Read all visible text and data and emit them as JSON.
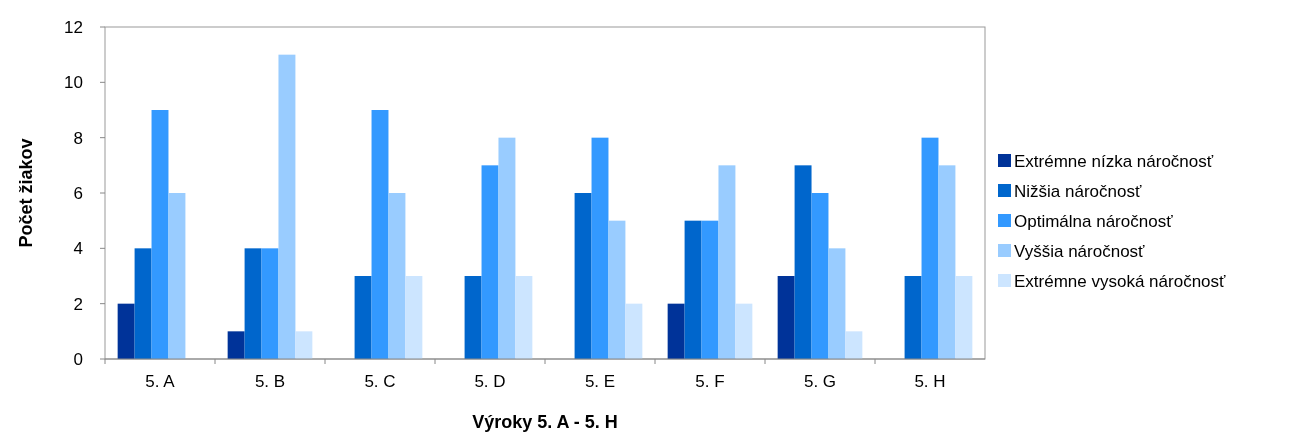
{
  "chart_data": {
    "type": "bar",
    "xlabel": "Výroky 5. A - 5. H",
    "ylabel": "Počet žiakov",
    "categories": [
      "5. A",
      "5. B",
      "5. C",
      "5. D",
      "5. E",
      "5. F",
      "5. G",
      "5. H"
    ],
    "series": [
      {
        "name": "Extrémne nízka náročnosť",
        "color": "#003399",
        "values": [
          2,
          1,
          0,
          0,
          0,
          2,
          3,
          0
        ]
      },
      {
        "name": "Nižšia náročnosť",
        "color": "#0066cc",
        "values": [
          4,
          4,
          3,
          3,
          6,
          5,
          7,
          3
        ]
      },
      {
        "name": "Optimálna náročnosť",
        "color": "#3399ff",
        "values": [
          9,
          4,
          9,
          7,
          8,
          5,
          6,
          8
        ]
      },
      {
        "name": "Vyššia náročnosť",
        "color": "#99ccff",
        "values": [
          6,
          11,
          6,
          8,
          5,
          7,
          4,
          7
        ]
      },
      {
        "name": "Extrémne vysoká náročnosť",
        "color": "#cce5ff",
        "values": [
          0,
          1,
          3,
          3,
          2,
          2,
          1,
          3
        ]
      }
    ],
    "ylim": [
      0,
      12
    ],
    "yticks": [
      0,
      2,
      4,
      6,
      8,
      10,
      12
    ],
    "legend": "right"
  }
}
